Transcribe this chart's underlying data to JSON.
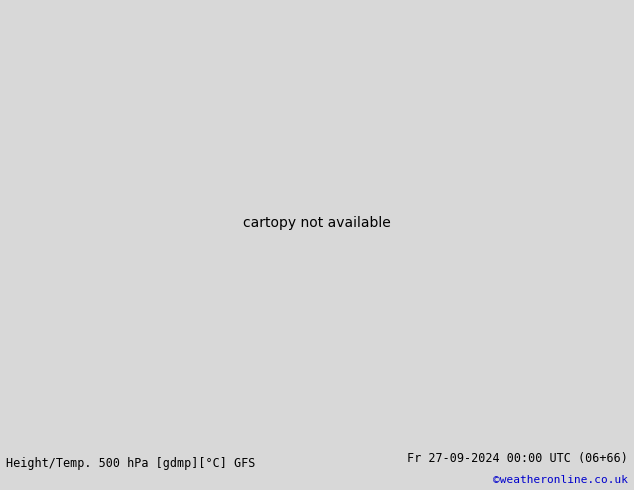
{
  "title_left": "Height/Temp. 500 hPa [gdmp][°C] GFS",
  "title_right": "Fr 27-09-2024 00:00 UTC (06+66)",
  "credit": "©weatheronline.co.uk",
  "fig_width": 6.34,
  "fig_height": 4.9,
  "dpi": 100,
  "bg_color": "#d8d8d8",
  "ocean_color": "#e8e8e8",
  "land_color": "#d8d8d8",
  "green_color": "#c8f0a0",
  "title_fontsize": 8.5,
  "credit_color": "#0000cc",
  "credit_fontsize": 8,
  "lon_min": -105,
  "lon_max": -20,
  "lat_min": -60,
  "lat_max": 15
}
